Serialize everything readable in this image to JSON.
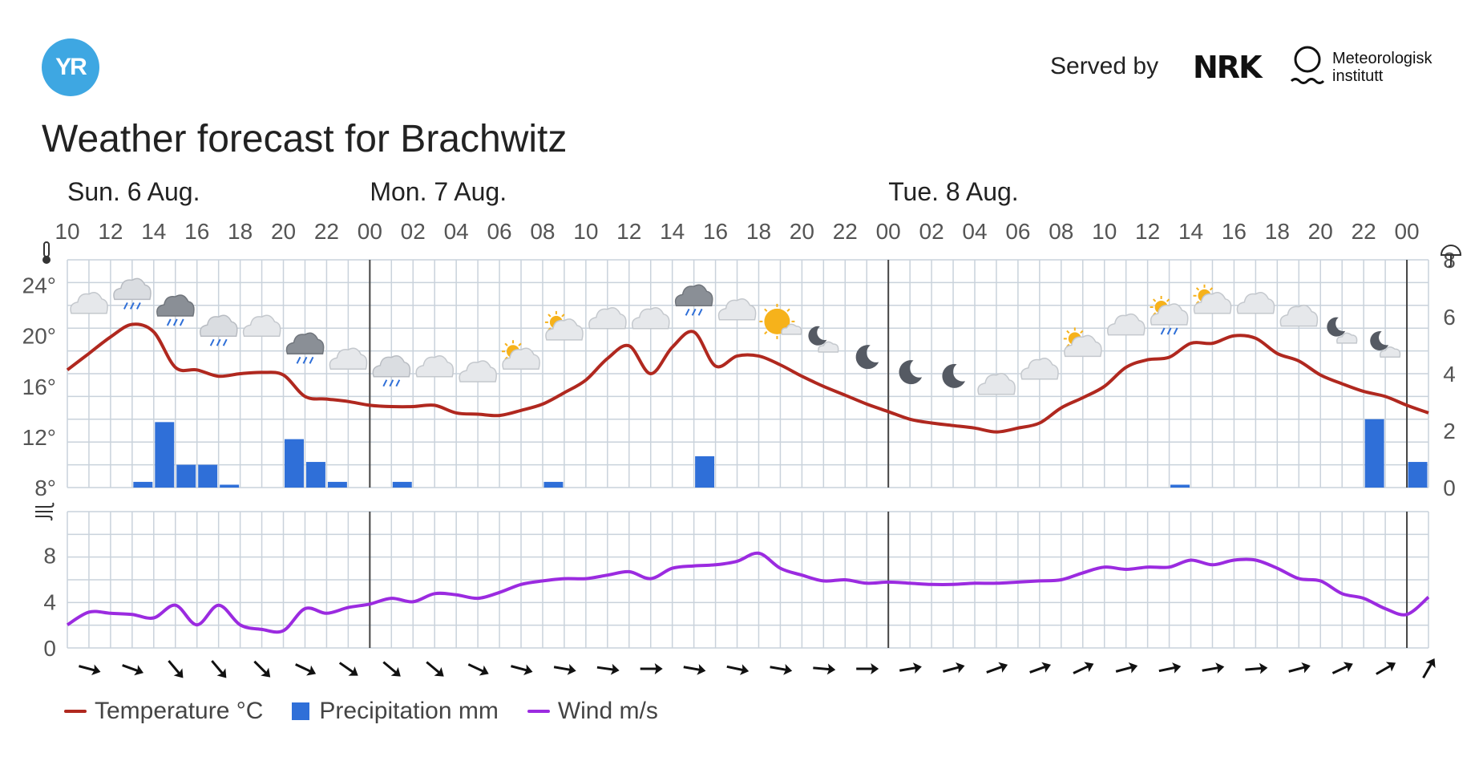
{
  "header": {
    "logo_text": "YR",
    "served_by": "Served by",
    "nrk_text": "NRK",
    "met_line1": "Meteorologisk",
    "met_line2": "institutt",
    "title": "Weather forecast for Brachwitz"
  },
  "colors": {
    "temperature": "#b0281f",
    "precipitation": "#2f6fd8",
    "wind": "#9b2be0",
    "grid": "#c9d2db",
    "day_divider": "#444444"
  },
  "legend": {
    "temperature": "Temperature °C",
    "precipitation": "Precipitation mm",
    "wind": "Wind m/s"
  },
  "chart_data": {
    "type": "line",
    "days": [
      {
        "label": "Sun. 6 Aug.",
        "start_hour_index": 0
      },
      {
        "label": "Mon. 7 Aug.",
        "start_hour_index": 14
      },
      {
        "label": "Tue. 8 Aug.",
        "start_hour_index": 38
      }
    ],
    "hour_tick_labels": [
      "10",
      "12",
      "14",
      "16",
      "18",
      "20",
      "22",
      "00",
      "02",
      "04",
      "06",
      "08",
      "10",
      "12",
      "14",
      "16",
      "18",
      "20",
      "22",
      "00",
      "02",
      "04",
      "06",
      "08",
      "10",
      "12",
      "14",
      "16",
      "18",
      "20",
      "22",
      "00"
    ],
    "temperature": {
      "name": "Temperature °C",
      "y_ticks": [
        "24°",
        "20°",
        "16°",
        "12°",
        "8°"
      ],
      "ylim": [
        8,
        26
      ],
      "values": [
        17.3,
        18.6,
        19.9,
        20.9,
        20.3,
        17.5,
        17.3,
        16.8,
        17.0,
        17.1,
        16.9,
        15.2,
        15.0,
        14.8,
        14.5,
        14.4,
        14.4,
        14.5,
        13.9,
        13.8,
        13.7,
        14.1,
        14.6,
        15.5,
        16.5,
        18.2,
        19.2,
        17.0,
        19.1,
        20.3,
        17.6,
        18.4,
        18.4,
        17.7,
        16.8,
        16.0,
        15.3,
        14.6,
        14.0,
        13.4,
        13.1,
        12.9,
        12.7,
        12.4,
        12.7,
        13.1,
        14.3,
        15.1,
        16.0,
        17.5,
        18.1,
        18.3,
        19.4,
        19.4,
        20.0,
        19.8,
        18.6,
        18.0,
        16.9,
        16.2,
        15.6,
        15.2,
        14.5,
        13.9
      ]
    },
    "precipitation": {
      "name": "Precipitation mm",
      "y_ticks": [
        "8",
        "6",
        "4",
        "2",
        "0"
      ],
      "ylim": [
        0,
        8
      ],
      "bars": [
        {
          "h": 3,
          "v": 0.2
        },
        {
          "h": 4,
          "v": 2.3
        },
        {
          "h": 5,
          "v": 0.8
        },
        {
          "h": 6,
          "v": 0.8
        },
        {
          "h": 7,
          "v": 0.1
        },
        {
          "h": 10,
          "v": 1.7
        },
        {
          "h": 11,
          "v": 0.9
        },
        {
          "h": 12,
          "v": 0.2
        },
        {
          "h": 15,
          "v": 0.2
        },
        {
          "h": 22,
          "v": 0.2
        },
        {
          "h": 29,
          "v": 1.1
        },
        {
          "h": 51,
          "v": 0.1
        },
        {
          "h": 60,
          "v": 2.4
        },
        {
          "h": 62,
          "v": 0.9
        }
      ]
    },
    "wind": {
      "name": "Wind m/s",
      "y_ticks": [
        "8",
        "4",
        "0"
      ],
      "ylim": [
        0,
        11.8
      ],
      "values": [
        2.0,
        3.1,
        3.0,
        2.9,
        2.6,
        3.7,
        2.0,
        3.7,
        2.0,
        1.6,
        1.5,
        3.4,
        3.0,
        3.5,
        3.8,
        4.3,
        4.0,
        4.7,
        4.6,
        4.3,
        4.8,
        5.5,
        5.8,
        6.0,
        6.0,
        6.3,
        6.6,
        6.0,
        6.9,
        7.1,
        7.2,
        7.5,
        8.2,
        6.9,
        6.3,
        5.8,
        5.9,
        5.6,
        5.7,
        5.6,
        5.5,
        5.5,
        5.6,
        5.6,
        5.7,
        5.8,
        5.9,
        6.5,
        7.0,
        6.8,
        7.0,
        7.0,
        7.6,
        7.2,
        7.6,
        7.6,
        6.9,
        6.0,
        5.8,
        4.7,
        4.3,
        3.4,
        2.9,
        4.4
      ]
    },
    "weather_icons": [
      {
        "h": 1,
        "type": "cloud",
        "temp": 22.4
      },
      {
        "h": 3,
        "type": "cloud-light-rain",
        "temp": 23.5
      },
      {
        "h": 5,
        "type": "dark-cloud-rain",
        "temp": 22.2
      },
      {
        "h": 7,
        "type": "cloud-light-rain",
        "temp": 20.6
      },
      {
        "h": 9,
        "type": "cloud",
        "temp": 20.6
      },
      {
        "h": 11,
        "type": "dark-cloud-rain",
        "temp": 19.2
      },
      {
        "h": 13,
        "type": "cloud",
        "temp": 18.0
      },
      {
        "h": 15,
        "type": "cloud-light-rain",
        "temp": 17.4
      },
      {
        "h": 17,
        "type": "cloud",
        "temp": 17.4
      },
      {
        "h": 19,
        "type": "cloud",
        "temp": 17.0
      },
      {
        "h": 21,
        "type": "partly-sunny",
        "temp": 18.0
      },
      {
        "h": 23,
        "type": "partly-sunny",
        "temp": 20.3
      },
      {
        "h": 25,
        "type": "cloud",
        "temp": 21.2
      },
      {
        "h": 27,
        "type": "cloud",
        "temp": 21.2
      },
      {
        "h": 29,
        "type": "dark-cloud-rain",
        "temp": 23.0
      },
      {
        "h": 31,
        "type": "cloud",
        "temp": 21.9
      },
      {
        "h": 33,
        "type": "sun-cloud",
        "temp": 21.0
      },
      {
        "h": 35,
        "type": "moon-cloud",
        "temp": 19.6
      },
      {
        "h": 37,
        "type": "moon",
        "temp": 18.3
      },
      {
        "h": 39,
        "type": "moon",
        "temp": 17.1
      },
      {
        "h": 41,
        "type": "moon",
        "temp": 16.8
      },
      {
        "h": 43,
        "type": "cloud",
        "temp": 16.0
      },
      {
        "h": 45,
        "type": "cloud",
        "temp": 17.2
      },
      {
        "h": 47,
        "type": "partly-sunny",
        "temp": 19.0
      },
      {
        "h": 49,
        "type": "cloud",
        "temp": 20.7
      },
      {
        "h": 51,
        "type": "partly-sunny-rain",
        "temp": 21.5
      },
      {
        "h": 53,
        "type": "partly-sunny",
        "temp": 22.4
      },
      {
        "h": 55,
        "type": "cloud",
        "temp": 22.4
      },
      {
        "h": 57,
        "type": "cloud",
        "temp": 21.4
      },
      {
        "h": 59,
        "type": "moon-cloud",
        "temp": 20.3
      },
      {
        "h": 61,
        "type": "moon-cloud",
        "temp": 19.2
      }
    ],
    "wind_directions": [
      {
        "h": 1,
        "angle": 15
      },
      {
        "h": 3,
        "angle": 20
      },
      {
        "h": 5,
        "angle": 50
      },
      {
        "h": 7,
        "angle": 50
      },
      {
        "h": 9,
        "angle": 45
      },
      {
        "h": 11,
        "angle": 25
      },
      {
        "h": 13,
        "angle": 35
      },
      {
        "h": 15,
        "angle": 40
      },
      {
        "h": 17,
        "angle": 40
      },
      {
        "h": 19,
        "angle": 25
      },
      {
        "h": 21,
        "angle": 15
      },
      {
        "h": 23,
        "angle": 10
      },
      {
        "h": 25,
        "angle": 8
      },
      {
        "h": 27,
        "angle": 0
      },
      {
        "h": 29,
        "angle": 10
      },
      {
        "h": 31,
        "angle": 12
      },
      {
        "h": 33,
        "angle": 10
      },
      {
        "h": 35,
        "angle": 5
      },
      {
        "h": 37,
        "angle": 0
      },
      {
        "h": 39,
        "angle": -10
      },
      {
        "h": 41,
        "angle": -15
      },
      {
        "h": 43,
        "angle": -20
      },
      {
        "h": 45,
        "angle": -20
      },
      {
        "h": 47,
        "angle": -25
      },
      {
        "h": 49,
        "angle": -15
      },
      {
        "h": 51,
        "angle": -12
      },
      {
        "h": 53,
        "angle": -10
      },
      {
        "h": 55,
        "angle": -5
      },
      {
        "h": 57,
        "angle": -15
      },
      {
        "h": 59,
        "angle": -25
      },
      {
        "h": 61,
        "angle": -30
      },
      {
        "h": 63,
        "angle": -60
      }
    ]
  }
}
